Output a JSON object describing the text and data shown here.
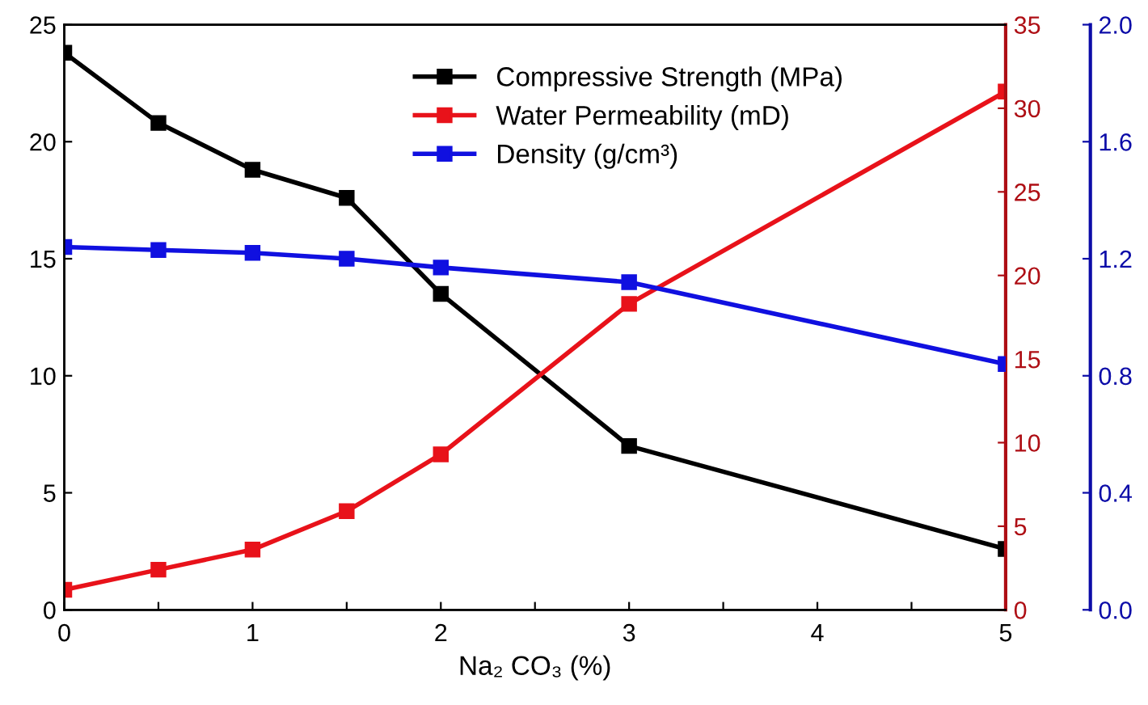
{
  "chart_data": {
    "type": "line",
    "xlabel": "Na₂ CO₃ (%)",
    "x": [
      0,
      0.5,
      1,
      1.5,
      2,
      3,
      5
    ],
    "xlim": [
      0,
      5
    ],
    "xticks": [
      0,
      {
        "value": 0.5,
        "label": null
      },
      1,
      {
        "value": 1.5,
        "label": null
      },
      2,
      {
        "value": 2.5,
        "label": null
      },
      3,
      {
        "value": 3.5,
        "label": null
      },
      4,
      {
        "value": 4.5,
        "label": null
      },
      5
    ],
    "ylim": [
      0,
      25
    ],
    "yticks": [
      0,
      5,
      10,
      15,
      20,
      25
    ],
    "y2lim": [
      0,
      35
    ],
    "y2ticks": [
      0,
      5,
      10,
      15,
      20,
      25,
      30,
      35
    ],
    "y3lim": [
      0,
      2.0
    ],
    "y3ticks": [
      {
        "value": 0,
        "label": "0.0"
      },
      0.4,
      0.8,
      1.2,
      1.6,
      {
        "value": 2,
        "label": "2.0"
      }
    ],
    "marker": "square",
    "line_style": "solid",
    "grid": false,
    "legend": "top",
    "series": [
      {
        "name": "Compressive Strength (MPa)",
        "color": "#000000",
        "values": [
          23.8,
          20.8,
          18.8,
          17.6,
          13.5,
          7.0,
          2.6
        ]
      },
      {
        "name": "Water Permeability (mD)",
        "color": "#e8121a",
        "axis": "y2",
        "values": [
          1.2,
          2.4,
          3.6,
          5.9,
          9.3,
          18.3,
          31.0
        ]
      },
      {
        "name": "Density (g/cm³)",
        "color": "#1010e0",
        "axis": "y3",
        "values": [
          1.24,
          1.23,
          1.22,
          1.2,
          1.17,
          1.12,
          0.84
        ]
      }
    ]
  }
}
